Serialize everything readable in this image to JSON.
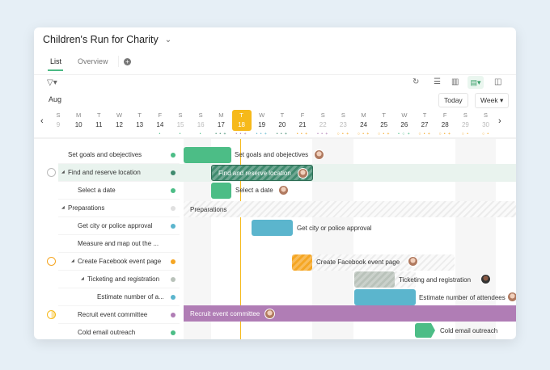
{
  "project": {
    "title": "Children's Run for Charity"
  },
  "tabs": [
    {
      "label": "List"
    },
    {
      "label": "Overview"
    }
  ],
  "toolbar": {
    "today": "Today",
    "view": "Week",
    "month": "Aug"
  },
  "days": [
    {
      "dow": "S",
      "num": "9"
    },
    {
      "dow": "M",
      "num": "10"
    },
    {
      "dow": "T",
      "num": "11"
    },
    {
      "dow": "W",
      "num": "12"
    },
    {
      "dow": "T",
      "num": "13"
    },
    {
      "dow": "F",
      "num": "14"
    },
    {
      "dow": "S",
      "num": "15"
    },
    {
      "dow": "S",
      "num": "16"
    },
    {
      "dow": "M",
      "num": "17"
    },
    {
      "dow": "T",
      "num": "18"
    },
    {
      "dow": "W",
      "num": "19"
    },
    {
      "dow": "T",
      "num": "20"
    },
    {
      "dow": "F",
      "num": "21"
    },
    {
      "dow": "S",
      "num": "22"
    },
    {
      "dow": "S",
      "num": "23"
    },
    {
      "dow": "M",
      "num": "24"
    },
    {
      "dow": "T",
      "num": "25"
    },
    {
      "dow": "W",
      "num": "26"
    },
    {
      "dow": "T",
      "num": "27"
    },
    {
      "dow": "F",
      "num": "28"
    },
    {
      "dow": "S",
      "num": "29"
    },
    {
      "dow": "S",
      "num": "30"
    }
  ],
  "tasks": [
    {
      "name": "Set goals and obejectives",
      "color": "#4cbd86"
    },
    {
      "name": "Find and reserve location",
      "color": "#3f8a6e"
    },
    {
      "name": "Select a date",
      "color": "#4cbd86"
    },
    {
      "name": "Preparations",
      "color": "#e0e0e0"
    },
    {
      "name": "Get city or police approval",
      "color": "#5bb5cd"
    },
    {
      "name": "Measure and map out the ..."
    },
    {
      "name": "Create Facebook event page",
      "color": "#f5a623"
    },
    {
      "name": "Ticketing and registration",
      "color": "#b9c2ba"
    },
    {
      "name": "Estimate number of a...",
      "color": "#5bb5cd"
    },
    {
      "name": "Recruit event committee",
      "color": "#b07db5"
    },
    {
      "name": "Cold email outreach",
      "color": "#4cbd86"
    }
  ],
  "bars": {
    "set_goals": "Set goals and obejectives",
    "find_location": "Find and reserve location",
    "select_date": "Select a date",
    "preparations": "Preparations",
    "city_approval": "Get city or police approval",
    "facebook": "Create Facebook event page",
    "ticketing": "Ticketing and registration",
    "estimate": "Estimate number of attendees",
    "recruit": "Recruit event committee",
    "cold_email": "Cold email outreach"
  },
  "today_color": "#f6b91a"
}
